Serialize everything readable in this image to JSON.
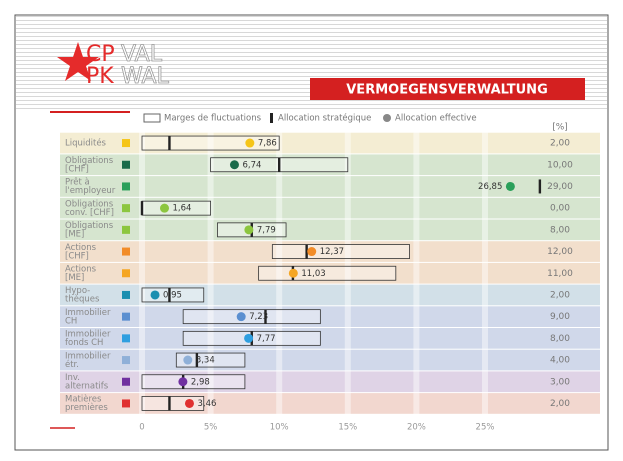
{
  "header": {
    "logo": [
      "CP",
      "VAL",
      "PK",
      "WAL"
    ],
    "title": "VERMOEGENSVERWALTUNG"
  },
  "chart_data": {
    "type": "range",
    "legend": [
      "Marges de fluctuations",
      "Allocation stratégique",
      "Allocation effective"
    ],
    "unit": "[%]",
    "categories": [
      [
        "Liquidités"
      ],
      [
        "Obligations",
        "[CHF]"
      ],
      [
        "Prêt à",
        "l'employeur"
      ],
      [
        "Obligations",
        "conv. [CHF]"
      ],
      [
        "Obligations",
        "[ME]"
      ],
      [
        "Actions",
        "[CHF]"
      ],
      [
        "Actions",
        "[ME]"
      ],
      [
        "Hypo-",
        "thèques"
      ],
      [
        "Immobilier",
        "CH"
      ],
      [
        "Immobilier",
        "fonds CH"
      ],
      [
        "Immobilier",
        "étr."
      ],
      [
        "Inv.",
        "alternatifs"
      ],
      [
        "Matières",
        "premières"
      ]
    ],
    "ranges": [
      [
        0,
        10
      ],
      [
        5,
        15
      ],
      null,
      [
        0,
        5
      ],
      [
        5.5,
        10.5
      ],
      [
        9.5,
        19.5
      ],
      [
        8.5,
        18.5
      ],
      [
        0,
        4.5
      ],
      [
        3,
        13
      ],
      [
        3,
        13
      ],
      [
        2.5,
        7.5
      ],
      [
        0,
        7.5
      ],
      [
        0,
        4.5
      ]
    ],
    "strategic": [
      2,
      10,
      29,
      0,
      8,
      12,
      11,
      2,
      9,
      8,
      4,
      3,
      2
    ],
    "strategic_labels": [
      "2,00",
      "10,00",
      "29,00",
      "0,00",
      "8,00",
      "12,00",
      "11,00",
      "2,00",
      "9,00",
      "8,00",
      "4,00",
      "3,00",
      "2,00"
    ],
    "effective": [
      7.86,
      6.74,
      26.85,
      1.64,
      7.79,
      12.37,
      11.03,
      0.95,
      7.23,
      7.77,
      3.34,
      2.98,
      3.46
    ],
    "effective_labels": [
      "7,86",
      "6,74",
      "26,85",
      "1,64",
      "7,79",
      "12,37",
      "11,03",
      "0,95",
      "7,23",
      "7,77",
      "3,34",
      "2,98",
      "3,46"
    ],
    "colors": [
      "#f5c518",
      "#1a6b4a",
      "#2aa05a",
      "#8cc63f",
      "#8cc63f",
      "#f28c28",
      "#f5a623",
      "#1b8fb0",
      "#5b8fd0",
      "#2f9fe0",
      "#8fb0d8",
      "#7030a0",
      "#e03030"
    ],
    "band_colors": [
      "#f4edd3",
      "#d6e5cf",
      "#d6e5cf",
      "#d6e5cf",
      "#d6e5cf",
      "#f2dfcc",
      "#f2dfcc",
      "#d2e0e8",
      "#d0d8ea",
      "#d0d8ea",
      "#d0d8ea",
      "#dfd3e6",
      "#f2d7cf"
    ],
    "xlim": [
      0,
      29.5
    ],
    "xticks": [
      0,
      {
        "value": 5,
        "label": "5%"
      },
      {
        "value": 10,
        "label": "10%"
      },
      {
        "value": 15,
        "label": "15%"
      },
      {
        "value": 20,
        "label": "20%"
      },
      {
        "value": 25,
        "label": "25%"
      }
    ],
    "grid": true
  }
}
